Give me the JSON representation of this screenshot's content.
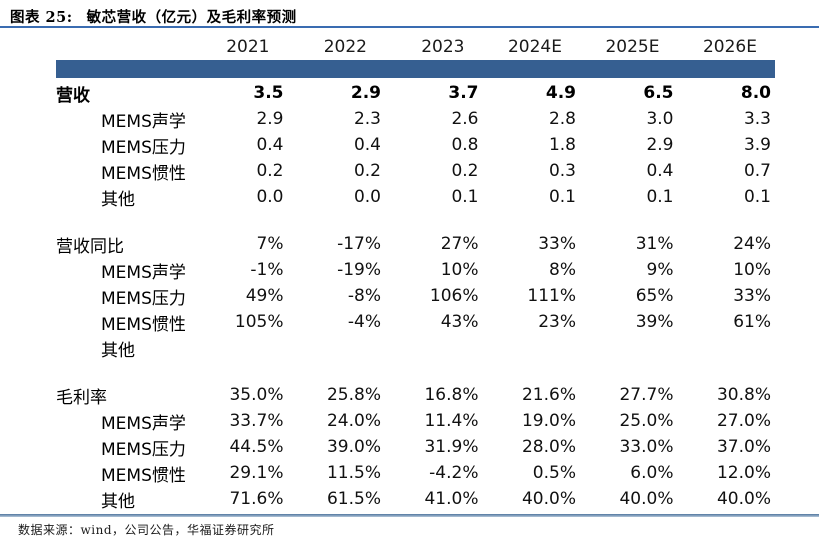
{
  "title": {
    "prefix": "图表 25:",
    "text": "敏芯营收（亿元）及毛利率预测"
  },
  "footer": {
    "source": "数据来源：wind，公司公告，华福证券研究所"
  },
  "colors": {
    "header_bar": "#365f91",
    "title_rule": "#3a6cb1",
    "footer_rule_dark": "#50779f",
    "footer_rule_light": "#b3c6d9"
  },
  "chart_data": {
    "type": "table",
    "title": "图表 25: 敏芯营收（亿元）及毛利率预测",
    "columns": [
      "2021",
      "2022",
      "2023",
      "2024E",
      "2025E",
      "2026E"
    ],
    "sections": [
      {
        "name": "营收",
        "rows": [
          {
            "label": "营收",
            "bold": true,
            "indent": false,
            "values": [
              "3.5",
              "2.9",
              "3.7",
              "4.9",
              "6.5",
              "8.0"
            ]
          },
          {
            "label": "MEMS声学",
            "bold": false,
            "indent": true,
            "values": [
              "2.9",
              "2.3",
              "2.6",
              "2.8",
              "3.0",
              "3.3"
            ]
          },
          {
            "label": "MEMS压力",
            "bold": false,
            "indent": true,
            "values": [
              "0.4",
              "0.4",
              "0.8",
              "1.8",
              "2.9",
              "3.9"
            ]
          },
          {
            "label": "MEMS惯性",
            "bold": false,
            "indent": true,
            "values": [
              "0.2",
              "0.2",
              "0.2",
              "0.3",
              "0.4",
              "0.7"
            ]
          },
          {
            "label": "其他",
            "bold": false,
            "indent": true,
            "values": [
              "0.0",
              "0.0",
              "0.1",
              "0.1",
              "0.1",
              "0.1"
            ]
          }
        ]
      },
      {
        "name": "营收同比",
        "rows": [
          {
            "label": "营收同比",
            "bold": false,
            "indent": false,
            "values": [
              "7%",
              "-17%",
              "27%",
              "33%",
              "31%",
              "24%"
            ]
          },
          {
            "label": "MEMS声学",
            "bold": false,
            "indent": true,
            "values": [
              "-1%",
              "-19%",
              "10%",
              "8%",
              "9%",
              "10%"
            ]
          },
          {
            "label": "MEMS压力",
            "bold": false,
            "indent": true,
            "values": [
              "49%",
              "-8%",
              "106%",
              "111%",
              "65%",
              "33%"
            ]
          },
          {
            "label": "MEMS惯性",
            "bold": false,
            "indent": true,
            "values": [
              "105%",
              "-4%",
              "43%",
              "23%",
              "39%",
              "61%"
            ]
          },
          {
            "label": "其他",
            "bold": false,
            "indent": true,
            "values": [
              "",
              "",
              "",
              "",
              "",
              ""
            ]
          }
        ]
      },
      {
        "name": "毛利率",
        "rows": [
          {
            "label": "毛利率",
            "bold": false,
            "indent": false,
            "values": [
              "35.0%",
              "25.8%",
              "16.8%",
              "21.6%",
              "27.7%",
              "30.8%"
            ]
          },
          {
            "label": "MEMS声学",
            "bold": false,
            "indent": true,
            "values": [
              "33.7%",
              "24.0%",
              "11.4%",
              "19.0%",
              "25.0%",
              "27.0%"
            ]
          },
          {
            "label": "MEMS压力",
            "bold": false,
            "indent": true,
            "values": [
              "44.5%",
              "39.0%",
              "31.9%",
              "28.0%",
              "33.0%",
              "37.0%"
            ]
          },
          {
            "label": "MEMS惯性",
            "bold": false,
            "indent": true,
            "values": [
              "29.1%",
              "11.5%",
              "-4.2%",
              "0.5%",
              "6.0%",
              "12.0%"
            ]
          },
          {
            "label": "其他",
            "bold": false,
            "indent": true,
            "values": [
              "71.6%",
              "61.5%",
              "41.0%",
              "40.0%",
              "40.0%",
              "40.0%"
            ]
          }
        ]
      }
    ]
  }
}
